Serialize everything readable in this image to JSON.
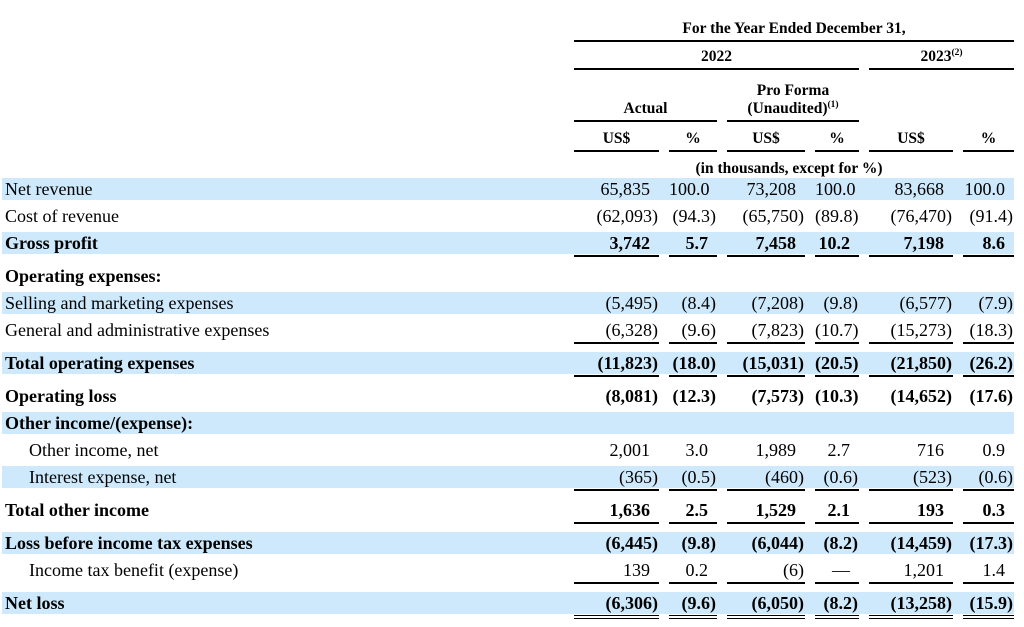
{
  "table": {
    "period_header": "For the Year Ended December 31,",
    "year_groups": [
      {
        "label": "2022",
        "sup": ""
      },
      {
        "label": "2023",
        "sup": "(2)"
      }
    ],
    "subgroups": [
      {
        "line1": "",
        "line2": "Actual",
        "sup": ""
      },
      {
        "line1": "Pro Forma",
        "line2": "(Unaudited)",
        "sup": "(1)"
      }
    ],
    "col_headers": [
      "US$",
      "%",
      "US$",
      "%",
      "US$",
      "%"
    ],
    "units_note": "(in thousands, except for %)",
    "rows": [
      {
        "label": "Net revenue",
        "values": [
          "65,835",
          "100.0",
          "73,208",
          "100.0",
          "83,668",
          "100.0"
        ],
        "bold": false,
        "indent": false,
        "shaded": true,
        "underline": "none"
      },
      {
        "label": "Cost of revenue",
        "values": [
          "(62,093)",
          "(94.3)",
          "(65,750)",
          "(89.8)",
          "(76,470)",
          "(91.4)"
        ],
        "bold": false,
        "indent": false,
        "shaded": false,
        "underline": "none"
      },
      {
        "label": "Gross profit",
        "values": [
          "3,742",
          "5.7",
          "7,458",
          "10.2",
          "7,198",
          "8.6"
        ],
        "bold": true,
        "indent": false,
        "shaded": true,
        "underline": "single"
      },
      {
        "label": "Operating expenses:",
        "values": [
          "",
          "",
          "",
          "",
          "",
          ""
        ],
        "bold": true,
        "indent": false,
        "shaded": false,
        "underline": "none"
      },
      {
        "label": "Selling and marketing expenses",
        "values": [
          "(5,495)",
          "(8.4)",
          "(7,208)",
          "(9.8)",
          "(6,577)",
          "(7.9)"
        ],
        "bold": false,
        "indent": false,
        "shaded": true,
        "underline": "none"
      },
      {
        "label": "General and administrative expenses",
        "values": [
          "(6,328)",
          "(9.6)",
          "(7,823)",
          "(10.7)",
          "(15,273)",
          "(18.3)"
        ],
        "bold": false,
        "indent": false,
        "shaded": false,
        "underline": "single"
      },
      {
        "label": "Total operating expenses",
        "values": [
          "(11,823)",
          "(18.0)",
          "(15,031)",
          "(20.5)",
          "(21,850)",
          "(26.2)"
        ],
        "bold": true,
        "indent": false,
        "shaded": true,
        "underline": "single"
      },
      {
        "label": "Operating loss",
        "values": [
          "(8,081)",
          "(12.3)",
          "(7,573)",
          "(10.3)",
          "(14,652)",
          "(17.6)"
        ],
        "bold": true,
        "indent": false,
        "shaded": false,
        "underline": "none"
      },
      {
        "label": "Other income/(expense):",
        "values": [
          "",
          "",
          "",
          "",
          "",
          ""
        ],
        "bold": true,
        "indent": false,
        "shaded": true,
        "underline": "none"
      },
      {
        "label": "Other income, net",
        "values": [
          "2,001",
          "3.0",
          "1,989",
          "2.7",
          "716",
          "0.9"
        ],
        "bold": false,
        "indent": true,
        "shaded": false,
        "underline": "none"
      },
      {
        "label": "Interest expense, net",
        "values": [
          "(365)",
          "(0.5)",
          "(460)",
          "(0.6)",
          "(523)",
          "(0.6)"
        ],
        "bold": false,
        "indent": true,
        "shaded": true,
        "underline": "single"
      },
      {
        "label": "Total other income",
        "values": [
          "1,636",
          "2.5",
          "1,529",
          "2.1",
          "193",
          "0.3"
        ],
        "bold": true,
        "indent": false,
        "shaded": false,
        "underline": "single"
      },
      {
        "label": "Loss before income tax expenses",
        "values": [
          "(6,445)",
          "(9.8)",
          "(6,044)",
          "(8.2)",
          "(14,459)",
          "(17.3)"
        ],
        "bold": true,
        "indent": false,
        "shaded": true,
        "underline": "none"
      },
      {
        "label": "Income tax benefit (expense)",
        "values": [
          "139",
          "0.2",
          "(6)",
          "—",
          "1,201",
          "1.4"
        ],
        "bold": false,
        "indent": true,
        "shaded": false,
        "underline": "single"
      },
      {
        "label": "Net loss",
        "values": [
          "(6,306)",
          "(9.6)",
          "(6,050)",
          "(8.2)",
          "(13,258)",
          "(15.9)"
        ],
        "bold": true,
        "indent": false,
        "shaded": true,
        "underline": "double"
      }
    ]
  },
  "colors": {
    "row_highlight": "#cde9fb",
    "text": "#000000",
    "rule": "#000000"
  }
}
